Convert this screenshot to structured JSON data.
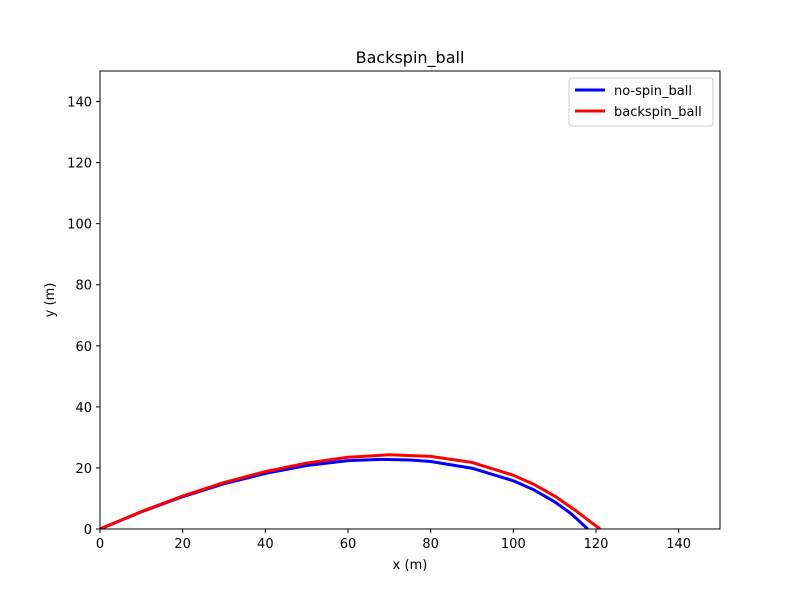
{
  "chart_data": {
    "type": "line",
    "title": "Backspin_ball",
    "xlabel": "x (m)",
    "ylabel": "y (m)",
    "xlim": [
      0,
      150
    ],
    "ylim": [
      0,
      150
    ],
    "xticks": [
      0,
      20,
      40,
      60,
      80,
      100,
      120,
      140
    ],
    "yticks": [
      0,
      20,
      40,
      60,
      80,
      100,
      120,
      140
    ],
    "grid": false,
    "legend_position": "top-right",
    "series": [
      {
        "name": "no-spin_ball",
        "color": "#0000ff",
        "x": [
          0,
          10,
          20,
          30,
          40,
          50,
          60,
          68,
          75,
          80,
          90,
          100,
          105,
          110,
          114,
          118
        ],
        "y": [
          0,
          5.6,
          10.6,
          14.8,
          18.2,
          20.8,
          22.4,
          22.8,
          22.6,
          22.1,
          19.9,
          15.8,
          12.8,
          8.9,
          5.0,
          0
        ]
      },
      {
        "name": "backspin_ball",
        "color": "#ff0000",
        "x": [
          0,
          10,
          20,
          30,
          40,
          50,
          60,
          70,
          80,
          90,
          100,
          105,
          110,
          115,
          118,
          121
        ],
        "y": [
          0,
          5.7,
          10.8,
          15.2,
          18.8,
          21.6,
          23.5,
          24.3,
          23.8,
          21.8,
          17.6,
          14.6,
          10.8,
          6.1,
          3.0,
          0
        ]
      }
    ]
  }
}
